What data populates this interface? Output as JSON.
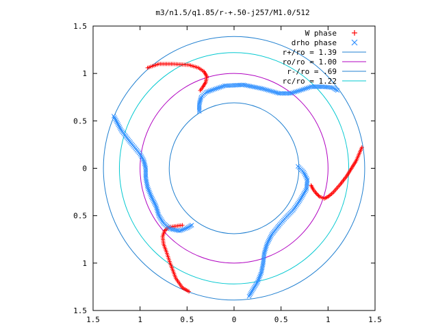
{
  "chart_data": {
    "type": "scatter",
    "title": "m3/n1.5/q1.85/r-+.50-j257/M1.0/512",
    "xlabel": "",
    "ylabel": "",
    "xlim": [
      -1.5,
      1.5
    ],
    "ylim": [
      -1.5,
      1.5
    ],
    "x_tick_labels": [
      "1.5",
      "1",
      "0.5",
      "0",
      "0.5",
      "1",
      "1.5"
    ],
    "y_tick_labels": [
      "1.5",
      "1",
      "0.5",
      "0",
      "0.5",
      "1",
      "1.5"
    ],
    "grid": false,
    "legend_position": "top-right",
    "series": [
      {
        "name": "W phase",
        "marker": "plus",
        "color": "#ff0000",
        "arms": [
          [
            [
              -0.92,
              1.06
            ],
            [
              -0.8,
              1.1
            ],
            [
              -0.65,
              1.1
            ],
            [
              -0.48,
              1.09
            ],
            [
              -0.38,
              1.06
            ],
            [
              -0.32,
              1.02
            ],
            [
              -0.29,
              0.97
            ],
            [
              -0.3,
              0.91
            ],
            [
              -0.33,
              0.86
            ],
            [
              -0.36,
              0.82
            ]
          ],
          [
            [
              1.36,
              0.22
            ],
            [
              1.3,
              0.08
            ],
            [
              1.25,
              0.0
            ],
            [
              1.2,
              -0.08
            ],
            [
              1.13,
              -0.17
            ],
            [
              1.05,
              -0.26
            ],
            [
              1.0,
              -0.3
            ],
            [
              0.96,
              -0.32
            ],
            [
              0.91,
              -0.3
            ],
            [
              0.87,
              -0.26
            ],
            [
              0.84,
              -0.22
            ],
            [
              0.82,
              -0.18
            ]
          ],
          [
            [
              -0.48,
              -1.3
            ],
            [
              -0.55,
              -1.26
            ],
            [
              -0.62,
              -1.16
            ],
            [
              -0.68,
              -1.0
            ],
            [
              -0.72,
              -0.88
            ],
            [
              -0.75,
              -0.8
            ],
            [
              -0.76,
              -0.72
            ],
            [
              -0.74,
              -0.66
            ],
            [
              -0.69,
              -0.62
            ],
            [
              -0.62,
              -0.61
            ],
            [
              -0.55,
              -0.6
            ]
          ]
        ]
      },
      {
        "name": "drho phase",
        "marker": "cross",
        "color": "#3090ff",
        "arms": [
          [
            [
              -0.37,
              0.6
            ],
            [
              -0.37,
              0.68
            ],
            [
              -0.35,
              0.75
            ],
            [
              -0.3,
              0.8
            ],
            [
              -0.22,
              0.83
            ],
            [
              -0.1,
              0.87
            ],
            [
              0.1,
              0.88
            ],
            [
              0.3,
              0.84
            ],
            [
              0.48,
              0.79
            ],
            [
              0.6,
              0.79
            ],
            [
              0.7,
              0.82
            ],
            [
              0.82,
              0.86
            ],
            [
              0.95,
              0.86
            ],
            [
              1.05,
              0.85
            ],
            [
              1.1,
              0.82
            ]
          ],
          [
            [
              0.68,
              0.02
            ],
            [
              0.74,
              -0.04
            ],
            [
              0.78,
              -0.12
            ],
            [
              0.77,
              -0.22
            ],
            [
              0.7,
              -0.34
            ],
            [
              0.63,
              -0.44
            ],
            [
              0.55,
              -0.52
            ],
            [
              0.48,
              -0.6
            ],
            [
              0.4,
              -0.7
            ],
            [
              0.35,
              -0.8
            ],
            [
              0.32,
              -0.9
            ],
            [
              0.31,
              -1.0
            ],
            [
              0.29,
              -1.1
            ],
            [
              0.25,
              -1.2
            ],
            [
              0.2,
              -1.28
            ],
            [
              0.16,
              -1.35
            ]
          ],
          [
            [
              -1.28,
              0.55
            ],
            [
              -1.2,
              0.4
            ],
            [
              -1.1,
              0.27
            ],
            [
              -1.0,
              0.15
            ],
            [
              -0.96,
              0.08
            ],
            [
              -0.94,
              0.0
            ],
            [
              -0.94,
              -0.1
            ],
            [
              -0.92,
              -0.2
            ],
            [
              -0.88,
              -0.3
            ],
            [
              -0.83,
              -0.4
            ],
            [
              -0.8,
              -0.5
            ],
            [
              -0.75,
              -0.58
            ],
            [
              -0.68,
              -0.64
            ],
            [
              -0.58,
              -0.66
            ],
            [
              -0.5,
              -0.63
            ],
            [
              -0.45,
              -0.6
            ]
          ]
        ]
      },
      {
        "name": "r+/ro = 1.39",
        "type": "circle",
        "radius": 1.39,
        "color": "#1f7fd0"
      },
      {
        "name": "ro/ro = 1.00",
        "type": "circle",
        "radius": 1.0,
        "color": "#b000c0"
      },
      {
        "name": "r-/ro = .69",
        "type": "circle",
        "radius": 0.69,
        "color": "#1f7fd0"
      },
      {
        "name": "rc/ro = 1.22",
        "type": "circle",
        "radius": 1.22,
        "color": "#00c8d0"
      }
    ]
  }
}
